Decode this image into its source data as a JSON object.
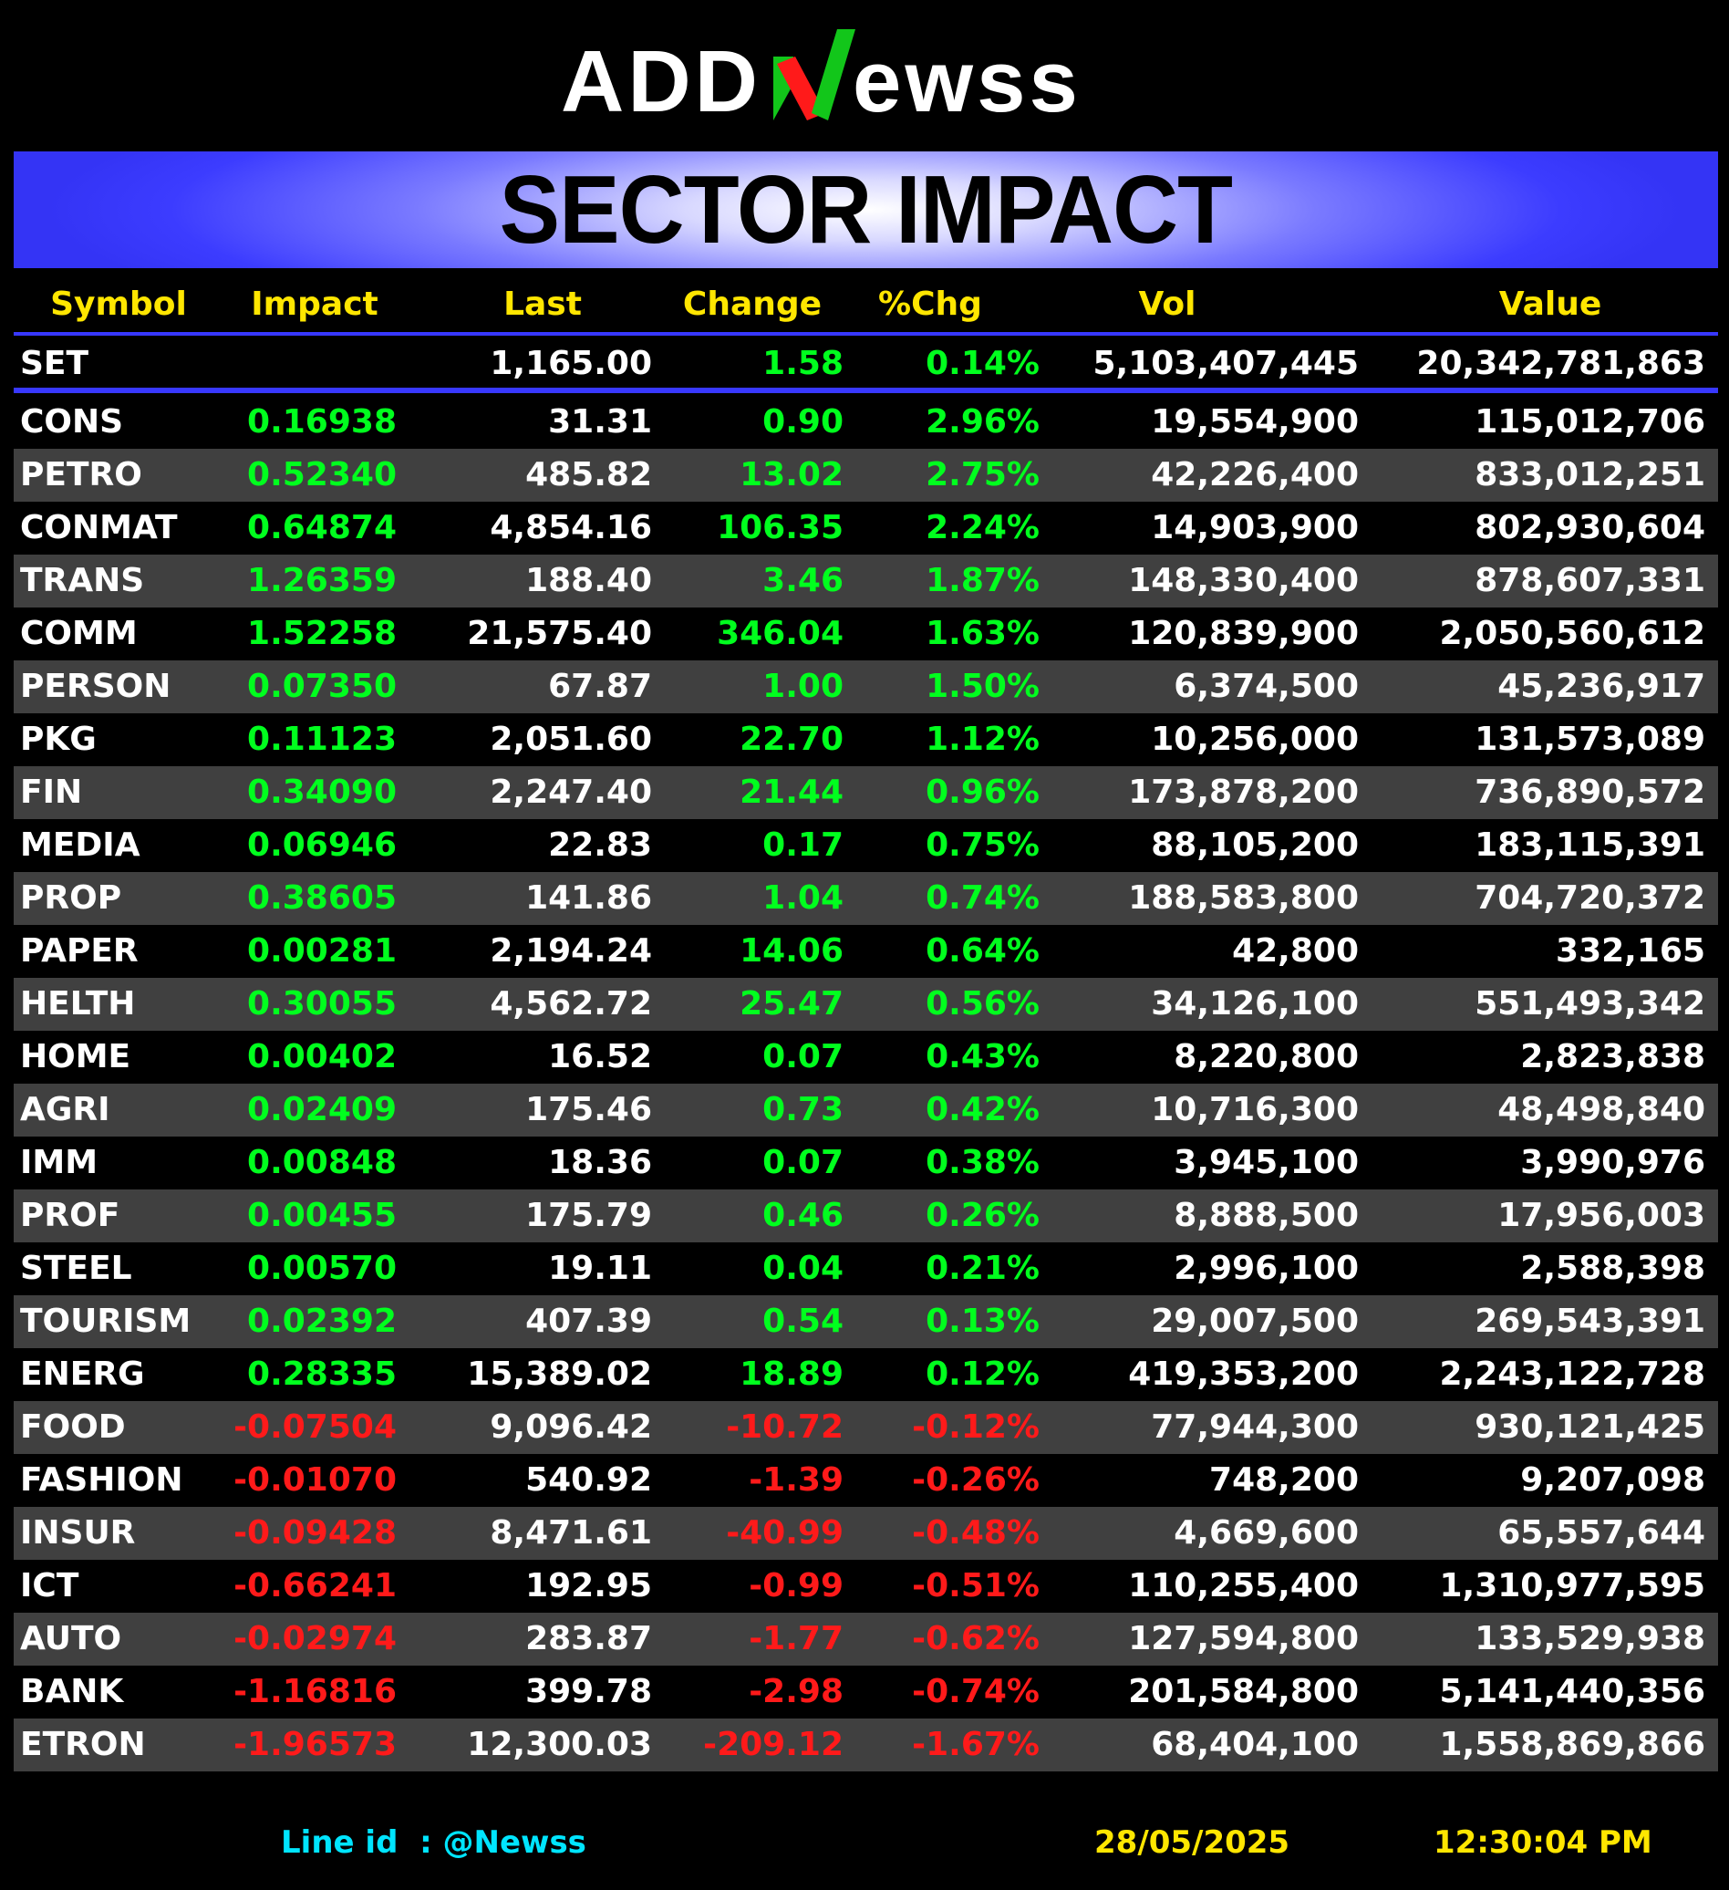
{
  "logo": {
    "part1": "ADD",
    "part2": "ewss",
    "brand_green": "#12c61a",
    "brand_red": "#ff1a1a"
  },
  "title": "SECTOR IMPACT",
  "columns": [
    "Symbol",
    "Impact",
    "Last",
    "Change",
    "%Chg",
    "Vol",
    "Value"
  ],
  "index_row": {
    "symbol": "SET",
    "impact": "",
    "last": "1,165.00",
    "change": "1.58",
    "pct": "0.14%",
    "vol": "5,103,407,445",
    "value": "20,342,781,863",
    "dir": "pos"
  },
  "rows": [
    {
      "symbol": "CONS",
      "impact": "0.16938",
      "last": "31.31",
      "change": "0.90",
      "pct": "2.96%",
      "vol": "19,554,900",
      "value": "115,012,706",
      "dir": "pos"
    },
    {
      "symbol": "PETRO",
      "impact": "0.52340",
      "last": "485.82",
      "change": "13.02",
      "pct": "2.75%",
      "vol": "42,226,400",
      "value": "833,012,251",
      "dir": "pos"
    },
    {
      "symbol": "CONMAT",
      "impact": "0.64874",
      "last": "4,854.16",
      "change": "106.35",
      "pct": "2.24%",
      "vol": "14,903,900",
      "value": "802,930,604",
      "dir": "pos"
    },
    {
      "symbol": "TRANS",
      "impact": "1.26359",
      "last": "188.40",
      "change": "3.46",
      "pct": "1.87%",
      "vol": "148,330,400",
      "value": "878,607,331",
      "dir": "pos"
    },
    {
      "symbol": "COMM",
      "impact": "1.52258",
      "last": "21,575.40",
      "change": "346.04",
      "pct": "1.63%",
      "vol": "120,839,900",
      "value": "2,050,560,612",
      "dir": "pos"
    },
    {
      "symbol": "PERSON",
      "impact": "0.07350",
      "last": "67.87",
      "change": "1.00",
      "pct": "1.50%",
      "vol": "6,374,500",
      "value": "45,236,917",
      "dir": "pos"
    },
    {
      "symbol": "PKG",
      "impact": "0.11123",
      "last": "2,051.60",
      "change": "22.70",
      "pct": "1.12%",
      "vol": "10,256,000",
      "value": "131,573,089",
      "dir": "pos"
    },
    {
      "symbol": "FIN",
      "impact": "0.34090",
      "last": "2,247.40",
      "change": "21.44",
      "pct": "0.96%",
      "vol": "173,878,200",
      "value": "736,890,572",
      "dir": "pos"
    },
    {
      "symbol": "MEDIA",
      "impact": "0.06946",
      "last": "22.83",
      "change": "0.17",
      "pct": "0.75%",
      "vol": "88,105,200",
      "value": "183,115,391",
      "dir": "pos"
    },
    {
      "symbol": "PROP",
      "impact": "0.38605",
      "last": "141.86",
      "change": "1.04",
      "pct": "0.74%",
      "vol": "188,583,800",
      "value": "704,720,372",
      "dir": "pos"
    },
    {
      "symbol": "PAPER",
      "impact": "0.00281",
      "last": "2,194.24",
      "change": "14.06",
      "pct": "0.64%",
      "vol": "42,800",
      "value": "332,165",
      "dir": "pos"
    },
    {
      "symbol": "HELTH",
      "impact": "0.30055",
      "last": "4,562.72",
      "change": "25.47",
      "pct": "0.56%",
      "vol": "34,126,100",
      "value": "551,493,342",
      "dir": "pos"
    },
    {
      "symbol": "HOME",
      "impact": "0.00402",
      "last": "16.52",
      "change": "0.07",
      "pct": "0.43%",
      "vol": "8,220,800",
      "value": "2,823,838",
      "dir": "pos"
    },
    {
      "symbol": "AGRI",
      "impact": "0.02409",
      "last": "175.46",
      "change": "0.73",
      "pct": "0.42%",
      "vol": "10,716,300",
      "value": "48,498,840",
      "dir": "pos"
    },
    {
      "symbol": "IMM",
      "impact": "0.00848",
      "last": "18.36",
      "change": "0.07",
      "pct": "0.38%",
      "vol": "3,945,100",
      "value": "3,990,976",
      "dir": "pos"
    },
    {
      "symbol": "PROF",
      "impact": "0.00455",
      "last": "175.79",
      "change": "0.46",
      "pct": "0.26%",
      "vol": "8,888,500",
      "value": "17,956,003",
      "dir": "pos"
    },
    {
      "symbol": "STEEL",
      "impact": "0.00570",
      "last": "19.11",
      "change": "0.04",
      "pct": "0.21%",
      "vol": "2,996,100",
      "value": "2,588,398",
      "dir": "pos"
    },
    {
      "symbol": "TOURISM",
      "impact": "0.02392",
      "last": "407.39",
      "change": "0.54",
      "pct": "0.13%",
      "vol": "29,007,500",
      "value": "269,543,391",
      "dir": "pos"
    },
    {
      "symbol": "ENERG",
      "impact": "0.28335",
      "last": "15,389.02",
      "change": "18.89",
      "pct": "0.12%",
      "vol": "419,353,200",
      "value": "2,243,122,728",
      "dir": "pos"
    },
    {
      "symbol": "FOOD",
      "impact": "-0.07504",
      "last": "9,096.42",
      "change": "-10.72",
      "pct": "-0.12%",
      "vol": "77,944,300",
      "value": "930,121,425",
      "dir": "neg"
    },
    {
      "symbol": "FASHION",
      "impact": "-0.01070",
      "last": "540.92",
      "change": "-1.39",
      "pct": "-0.26%",
      "vol": "748,200",
      "value": "9,207,098",
      "dir": "neg"
    },
    {
      "symbol": "INSUR",
      "impact": "-0.09428",
      "last": "8,471.61",
      "change": "-40.99",
      "pct": "-0.48%",
      "vol": "4,669,600",
      "value": "65,557,644",
      "dir": "neg"
    },
    {
      "symbol": "ICT",
      "impact": "-0.66241",
      "last": "192.95",
      "change": "-0.99",
      "pct": "-0.51%",
      "vol": "110,255,400",
      "value": "1,310,977,595",
      "dir": "neg"
    },
    {
      "symbol": "AUTO",
      "impact": "-0.02974",
      "last": "283.87",
      "change": "-1.77",
      "pct": "-0.62%",
      "vol": "127,594,800",
      "value": "133,529,938",
      "dir": "neg"
    },
    {
      "symbol": "BANK",
      "impact": "-1.16816",
      "last": "399.78",
      "change": "-2.98",
      "pct": "-0.74%",
      "vol": "201,584,800",
      "value": "5,141,440,356",
      "dir": "neg"
    },
    {
      "symbol": "ETRON",
      "impact": "-1.96573",
      "last": "12,300.03",
      "change": "-209.12",
      "pct": "-1.67%",
      "vol": "68,404,100",
      "value": "1,558,869,866",
      "dir": "neg"
    }
  ],
  "footer": {
    "line_id": "Line id  : @Newss",
    "date": "28/05/2025",
    "time": "12:30:04 PM"
  },
  "colors": {
    "positive": "#00ff1e",
    "negative": "#ff1a1a",
    "header_text": "#ffe600",
    "accent_line": "#3838ff",
    "alt_row": "#404040"
  }
}
